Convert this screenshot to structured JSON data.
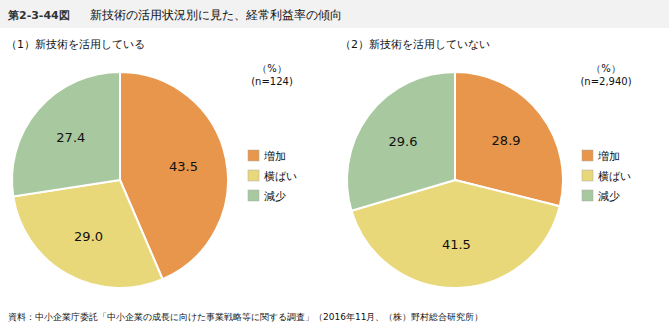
{
  "title": "新技術の活用状況別に見た、経常利益率の傾向",
  "figure_label": "第2-3-44図",
  "footer": "資料：中小企業庁委託「中小企業の成長に向けた事業戦略等に関する調査」（2016年11月、（株）野村総合研究所）",
  "chart_data": [
    {
      "type": "pie",
      "subtitle": "（1）新技術を活用している",
      "note": "（%）\n(n=124)",
      "categories": [
        "増加",
        "横ばい",
        "減少"
      ],
      "values": [
        43.5,
        29.0,
        27.4
      ],
      "value_labels": [
        "43.5",
        "29.0",
        "27.4"
      ],
      "colors": [
        "#E8964B",
        "#E8D87A",
        "#A8C8A0"
      ],
      "data_labels": true,
      "legend": "right"
    },
    {
      "type": "pie",
      "subtitle": "（2）新技術を活用していない",
      "note": "（%）\n(n=2,940)",
      "categories": [
        "増加",
        "横ばい",
        "減少"
      ],
      "values": [
        28.9,
        41.5,
        29.6
      ],
      "value_labels": [
        "28.9",
        "41.5",
        "29.6"
      ],
      "colors": [
        "#E8964B",
        "#E8D87A",
        "#A8C8A0"
      ],
      "data_labels": true,
      "legend": "right"
    }
  ]
}
